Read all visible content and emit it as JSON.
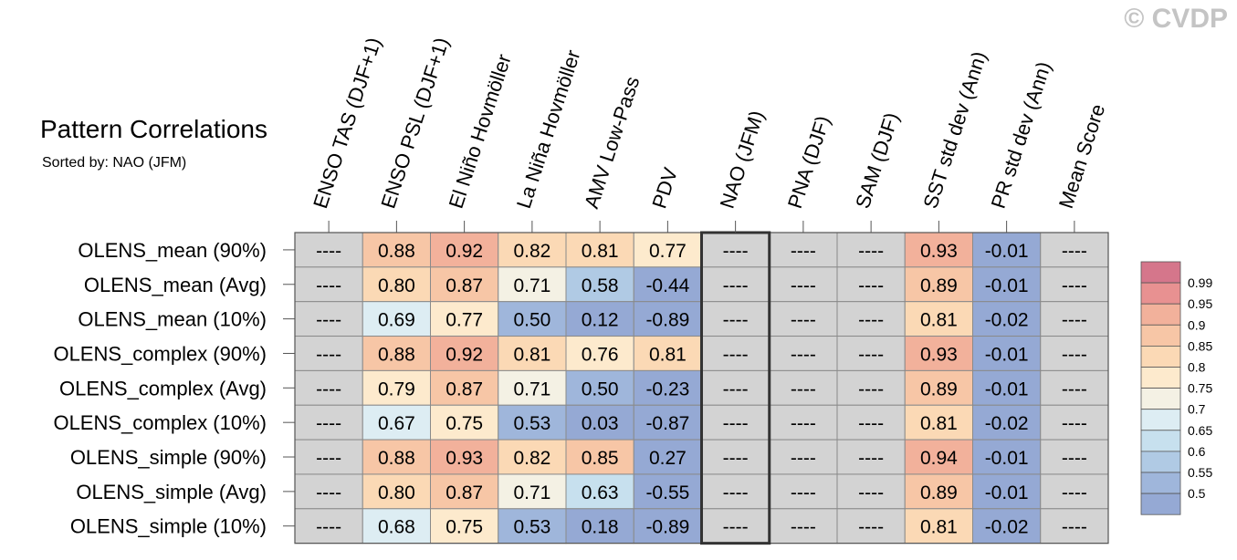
{
  "title": "Pattern Correlations",
  "subtitle": "Sorted by: NAO (JFM)",
  "copyright": "© CVDP",
  "chart_data": {
    "type": "heatmap",
    "columns": [
      "ENSO TAS (DJF+1)",
      "ENSO PSL (DJF+1)",
      "El Niño Hovmöller",
      "La Niña Hovmöller",
      "AMV Low-Pass",
      "PDV",
      "NAO (JFM)",
      "PNA (DJF)",
      "SAM (DJF)",
      "SST std dev (Ann)",
      "PR std dev (Ann)",
      "Mean Score"
    ],
    "rows": [
      {
        "label": "OLENS_mean (90%)",
        "values": [
          "----",
          "0.88",
          "0.92",
          "0.82",
          "0.81",
          "0.77",
          "----",
          "----",
          "----",
          "0.93",
          "-0.01",
          "----"
        ]
      },
      {
        "label": "OLENS_mean (Avg)",
        "values": [
          "----",
          "0.80",
          "0.87",
          "0.71",
          "0.58",
          "-0.44",
          "----",
          "----",
          "----",
          "0.89",
          "-0.01",
          "----"
        ]
      },
      {
        "label": "OLENS_mean (10%)",
        "values": [
          "----",
          "0.69",
          "0.77",
          "0.50",
          "0.12",
          "-0.89",
          "----",
          "----",
          "----",
          "0.81",
          "-0.02",
          "----"
        ]
      },
      {
        "label": "OLENS_complex (90%)",
        "values": [
          "----",
          "0.88",
          "0.92",
          "0.81",
          "0.76",
          "0.81",
          "----",
          "----",
          "----",
          "0.93",
          "-0.01",
          "----"
        ]
      },
      {
        "label": "OLENS_complex (Avg)",
        "values": [
          "----",
          "0.79",
          "0.87",
          "0.71",
          "0.50",
          "-0.23",
          "----",
          "----",
          "----",
          "0.89",
          "-0.01",
          "----"
        ]
      },
      {
        "label": "OLENS_complex (10%)",
        "values": [
          "----",
          "0.67",
          "0.75",
          "0.53",
          "0.03",
          "-0.87",
          "----",
          "----",
          "----",
          "0.81",
          "-0.02",
          "----"
        ]
      },
      {
        "label": "OLENS_simple (90%)",
        "values": [
          "----",
          "0.88",
          "0.93",
          "0.82",
          "0.85",
          "0.27",
          "----",
          "----",
          "----",
          "0.94",
          "-0.01",
          "----"
        ]
      },
      {
        "label": "OLENS_simple (Avg)",
        "values": [
          "----",
          "0.80",
          "0.87",
          "0.71",
          "0.63",
          "-0.55",
          "----",
          "----",
          "----",
          "0.89",
          "-0.01",
          "----"
        ]
      },
      {
        "label": "OLENS_simple (10%)",
        "values": [
          "----",
          "0.68",
          "0.75",
          "0.53",
          "0.18",
          "-0.89",
          "----",
          "----",
          "----",
          "0.81",
          "-0.02",
          "----"
        ]
      }
    ],
    "highlighted_column": "NAO (JFM)",
    "missing_color": "#d3d3d3",
    "colorbar": {
      "labels": [
        "0.99",
        "0.95",
        "0.9",
        "0.85",
        "0.8",
        "0.75",
        "0.7",
        "0.65",
        "0.6",
        "0.55",
        "0.5"
      ],
      "bins": [
        {
          "min": 0.99,
          "color": "#d5768b"
        },
        {
          "min": 0.95,
          "color": "#e89191"
        },
        {
          "min": 0.9,
          "color": "#f2b19b"
        },
        {
          "min": 0.85,
          "color": "#f7c6a6"
        },
        {
          "min": 0.8,
          "color": "#fbd9b5"
        },
        {
          "min": 0.75,
          "color": "#fdeacd"
        },
        {
          "min": 0.7,
          "color": "#f4f1e4"
        },
        {
          "min": 0.65,
          "color": "#ddedf3"
        },
        {
          "min": 0.6,
          "color": "#c7e0ee"
        },
        {
          "min": 0.55,
          "color": "#b0cae4"
        },
        {
          "min": 0.5,
          "color": "#9fb6db"
        },
        {
          "min": -99,
          "color": "#95a9d4"
        }
      ]
    }
  }
}
